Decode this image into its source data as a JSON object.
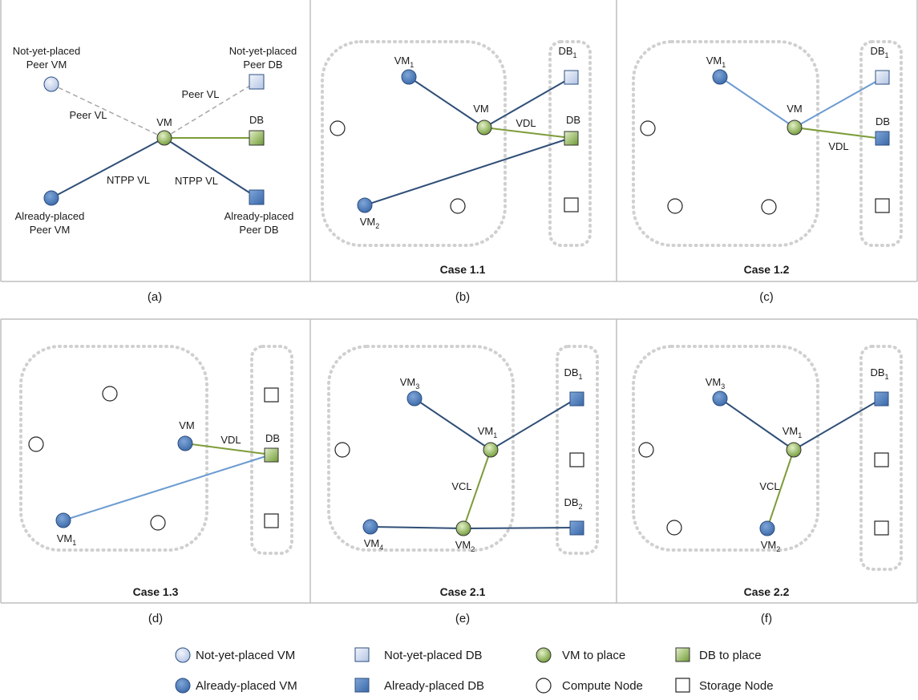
{
  "panels": [
    {
      "id": "a",
      "sublabel": "(a)",
      "caption": "",
      "nodes": [
        {
          "label": "Not-yet-placed",
          "label2": "Peer VM"
        },
        {
          "label": "Not-yet-placed",
          "label2": "Peer DB"
        },
        {
          "label": "VM"
        },
        {
          "label": "DB"
        },
        {
          "label": "Already-placed",
          "label2": "Peer VM"
        },
        {
          "label": "Already-placed",
          "label2": "Peer DB"
        }
      ],
      "edge_labels": [
        "Peer VL",
        "Peer VL",
        "NTPP VL",
        "NTPP VL"
      ]
    },
    {
      "id": "b",
      "sublabel": "(b)",
      "caption": "Case 1.1",
      "nodes": [
        {
          "label": "VM",
          "sub": "1"
        },
        {
          "label": "DB",
          "sub": "1"
        },
        {
          "label": "VM"
        },
        {
          "label": "DB"
        },
        {
          "label": "VM",
          "sub": "2"
        }
      ],
      "edge_labels": [
        "VDL"
      ]
    },
    {
      "id": "c",
      "sublabel": "(c)",
      "caption": "Case 1.2",
      "nodes": [
        {
          "label": "VM",
          "sub": "1"
        },
        {
          "label": "DB",
          "sub": "1"
        },
        {
          "label": "VM"
        },
        {
          "label": "DB"
        }
      ],
      "edge_labels": [
        "VDL"
      ]
    },
    {
      "id": "d",
      "sublabel": "(d)",
      "caption": "Case 1.3",
      "nodes": [
        {
          "label": "VM"
        },
        {
          "label": "DB"
        },
        {
          "label": "VM",
          "sub": "1"
        }
      ],
      "edge_labels": [
        "VDL"
      ]
    },
    {
      "id": "e",
      "sublabel": "(e)",
      "caption": "Case 2.1",
      "nodes": [
        {
          "label": "VM",
          "sub": "3"
        },
        {
          "label": "DB",
          "sub": "1"
        },
        {
          "label": "VM",
          "sub": "1"
        },
        {
          "label": "DB",
          "sub": "2"
        },
        {
          "label": "VM",
          "sub": "4"
        },
        {
          "label": "VM",
          "sub": "2"
        }
      ],
      "edge_labels": [
        "VCL"
      ]
    },
    {
      "id": "f",
      "sublabel": "(f)",
      "caption": "Case 2.2",
      "nodes": [
        {
          "label": "VM",
          "sub": "3"
        },
        {
          "label": "DB",
          "sub": "1"
        },
        {
          "label": "VM",
          "sub": "1"
        },
        {
          "label": "VM",
          "sub": "2"
        }
      ],
      "edge_labels": [
        "VCL"
      ]
    }
  ],
  "legend": [
    {
      "label": "Not-yet-placed VM",
      "icon": "circle-light-blue"
    },
    {
      "label": "Not-yet-placed DB",
      "icon": "square-light-blue"
    },
    {
      "label": "VM to place",
      "icon": "circle-green"
    },
    {
      "label": "DB to place",
      "icon": "square-green"
    },
    {
      "label": "Already-placed VM",
      "icon": "circle-blue"
    },
    {
      "label": "Already-placed DB",
      "icon": "square-blue"
    },
    {
      "label": "Compute Node",
      "icon": "circle-white"
    },
    {
      "label": "Storage Node",
      "icon": "square-white"
    }
  ],
  "colors": {
    "placed": "#4f81bd",
    "placed_stroke": "#2c4f80",
    "not_yet": "#cdd8ee",
    "to_place": "#8ab04f",
    "edge_dark": "#2f4e77",
    "edge_light": "#6b9bd1",
    "edge_green": "#7d9c3a",
    "edge_dashed": "#a6a6a6",
    "frame": "#bfbfbf",
    "group": "#d0d0d0"
  }
}
